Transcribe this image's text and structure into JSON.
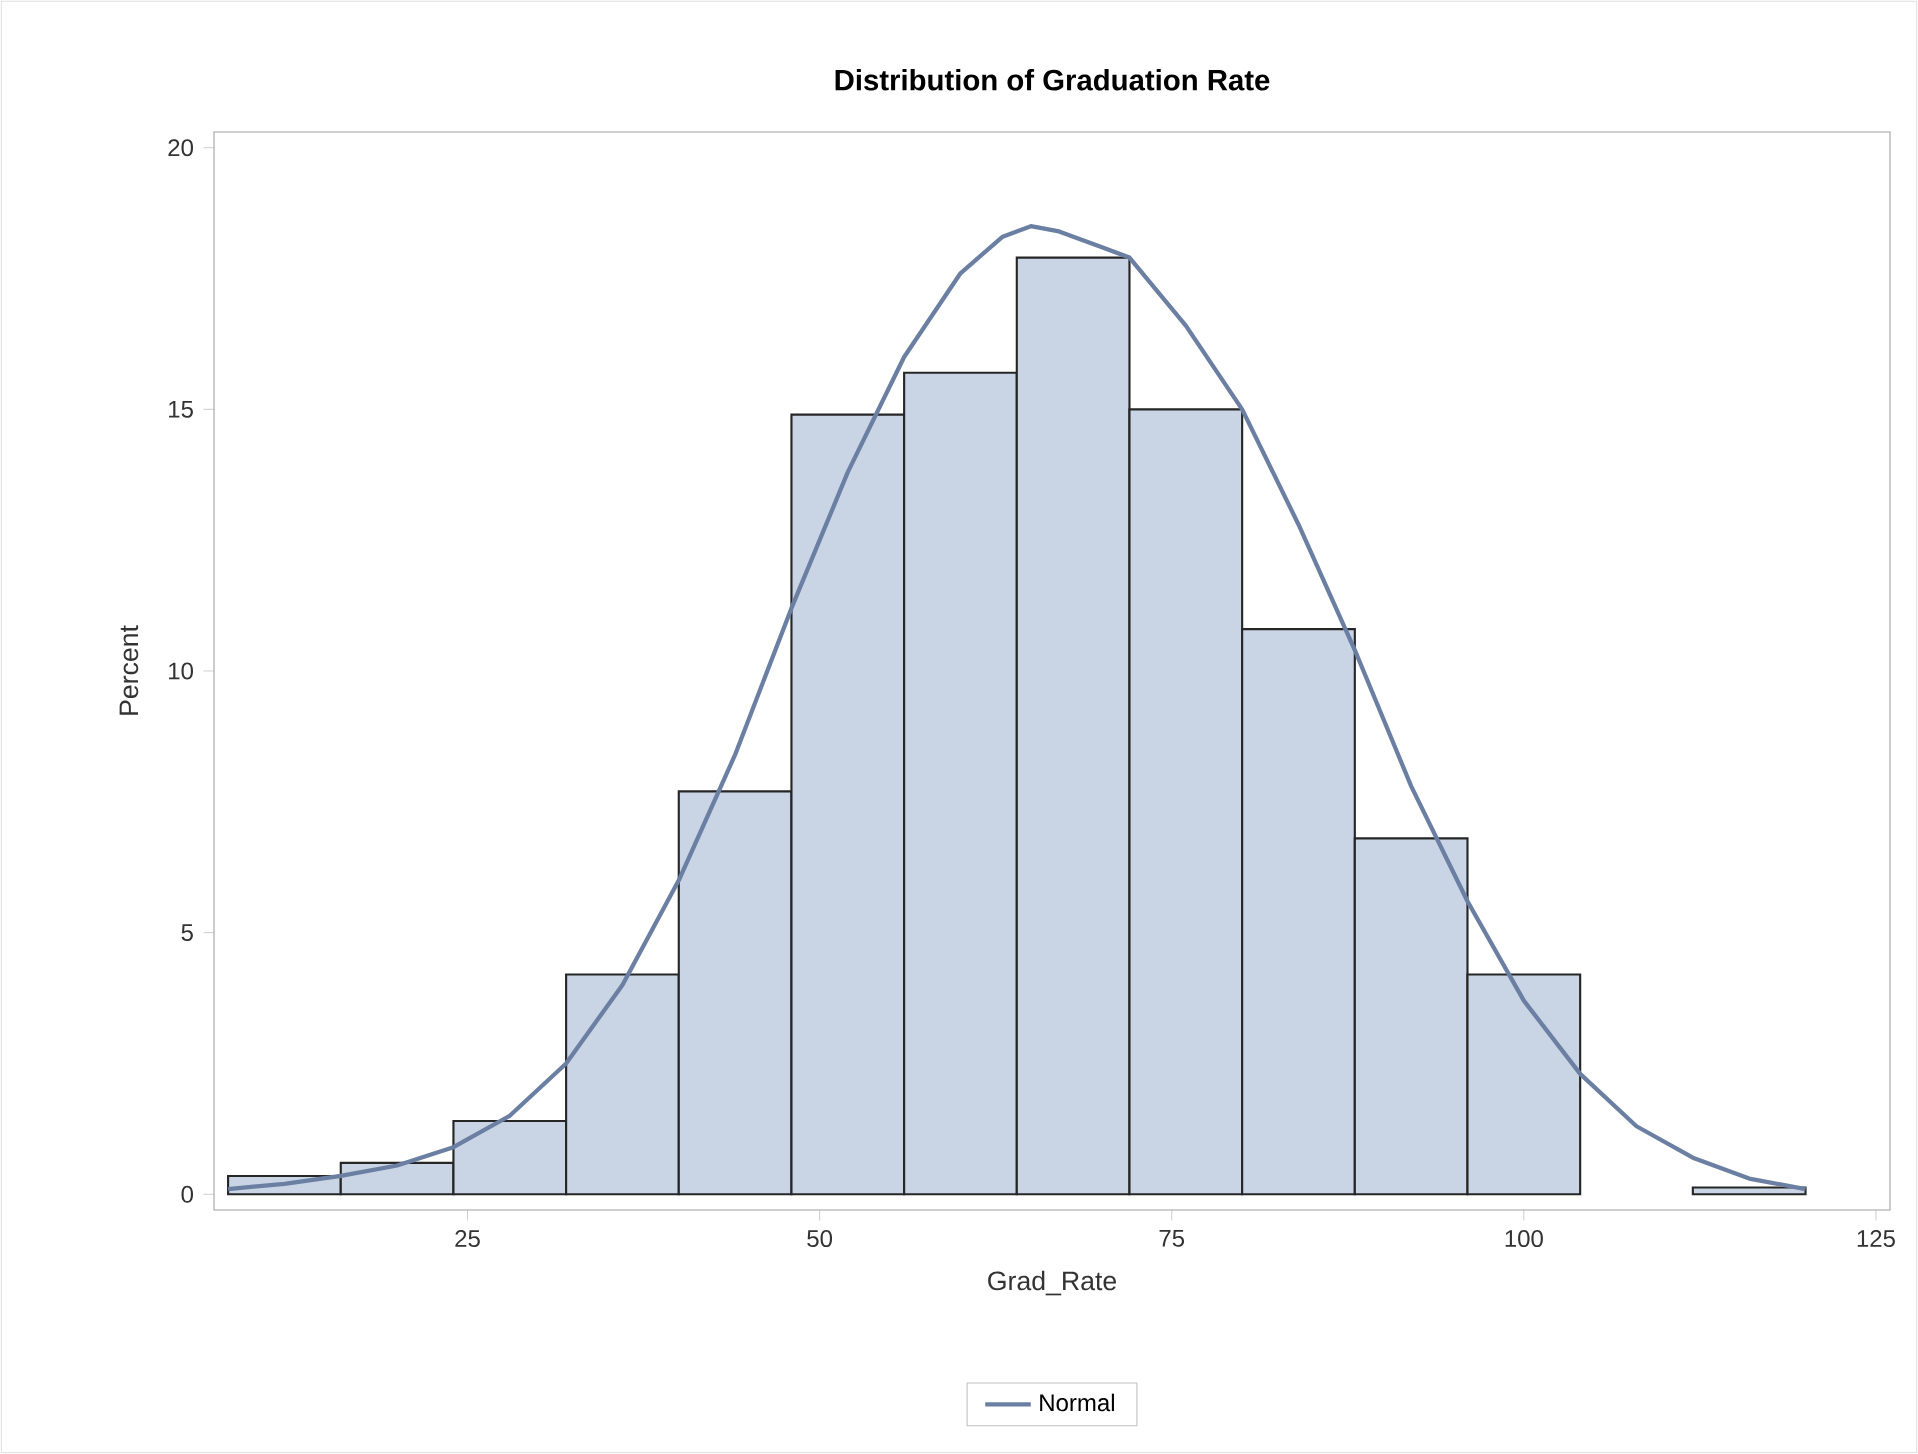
{
  "chart_data": {
    "type": "histogram",
    "title": "Distribution of Graduation Rate",
    "xlabel": "Grad_Rate",
    "ylabel": "Percent",
    "bins": [
      8,
      16,
      24,
      32,
      40,
      48,
      56,
      64,
      72,
      80,
      88,
      96,
      104,
      112,
      120
    ],
    "values": [
      0.35,
      0.6,
      1.4,
      4.2,
      7.7,
      14.9,
      15.7,
      17.9,
      15.0,
      10.8,
      6.8,
      4.2,
      0,
      0.13
    ],
    "color": "#c9d4e5",
    "series": [
      {
        "type": "line",
        "name": "Normal",
        "color": "#6b7fa3",
        "x": [
          8,
          12,
          16,
          20,
          24,
          28,
          32,
          36,
          40,
          44,
          48,
          52,
          56,
          60,
          63,
          65,
          67,
          70,
          72,
          76,
          80,
          84,
          88,
          92,
          96,
          100,
          104,
          108,
          112,
          116,
          120
        ],
        "values": [
          0.1,
          0.2,
          0.35,
          0.55,
          0.9,
          1.5,
          2.5,
          4.0,
          6.0,
          8.4,
          11.2,
          13.8,
          16.0,
          17.6,
          18.3,
          18.5,
          18.4,
          18.1,
          17.9,
          16.6,
          15.0,
          12.8,
          10.4,
          7.8,
          5.6,
          3.7,
          2.3,
          1.3,
          0.7,
          0.3,
          0.1
        ]
      }
    ],
    "xlim": [
      7,
      126
    ],
    "ylim": [
      -0.3,
      20.3
    ],
    "xticks": [
      25,
      50,
      75,
      100,
      125
    ],
    "yticks": [
      0,
      5,
      10,
      15,
      20
    ],
    "legend": "bottom"
  }
}
